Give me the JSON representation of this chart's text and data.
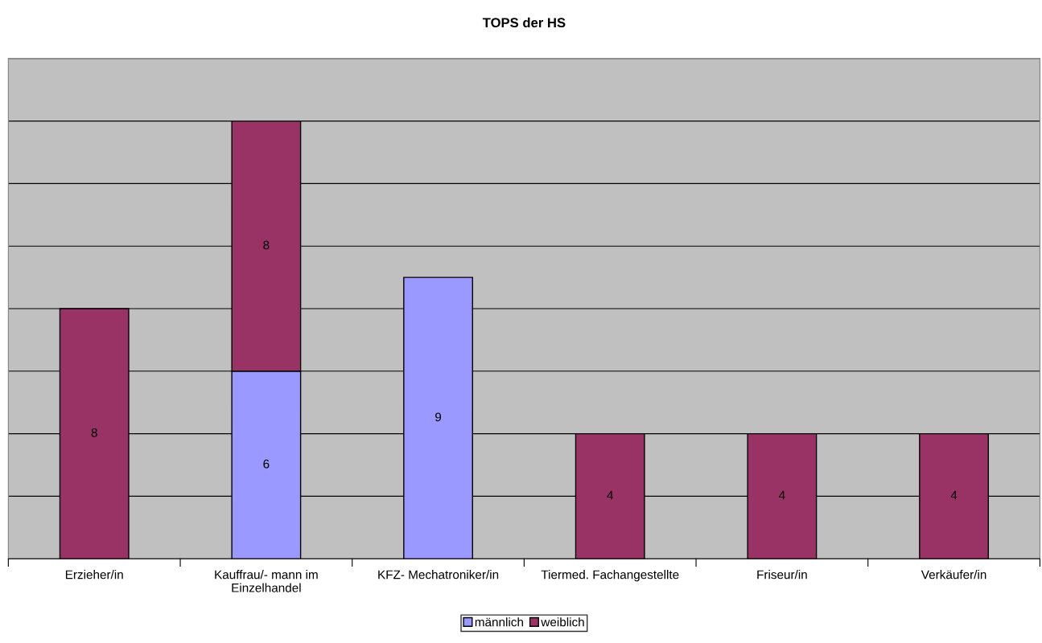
{
  "chart_data": {
    "type": "bar",
    "title": "TOPS der HS",
    "categories": [
      "Erzieher/in",
      "Kauffrau/- mann im\nEinzelhandel",
      "KFZ- Mechatroniker/in",
      "Tiermed. Fachangestellte",
      "Friseur/in",
      "Verkäufer/in"
    ],
    "stacked": true,
    "series": [
      {
        "name": "männlich",
        "color": "#9999ff",
        "values": [
          null,
          6,
          9,
          null,
          null,
          null
        ]
      },
      {
        "name": "weiblich",
        "color": "#993366",
        "values": [
          8,
          8,
          null,
          4,
          4,
          4
        ]
      }
    ],
    "ylim": [
      0,
      16
    ],
    "yticks": [
      {
        "value": 0,
        "label": null
      },
      {
        "value": 2,
        "label": null
      },
      {
        "value": 4,
        "label": null
      },
      {
        "value": 6,
        "label": null
      },
      {
        "value": 8,
        "label": null
      },
      {
        "value": 10,
        "label": null
      },
      {
        "value": 12,
        "label": null
      },
      {
        "value": 14,
        "label": null
      },
      {
        "value": 16,
        "label": null
      }
    ],
    "tick_labels": "x",
    "grid": "y",
    "data_labels": true,
    "legend": "bottom"
  }
}
